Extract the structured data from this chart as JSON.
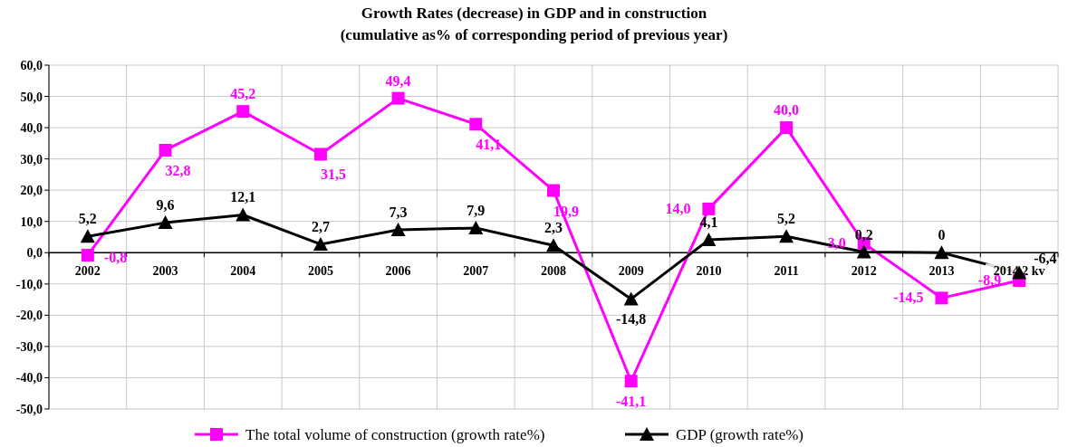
{
  "chart_data": {
    "type": "line",
    "title": "Growth Rates (decrease) in GDP and in construction\n(cumulative as% of corresponding period of previous year)",
    "categories": [
      "2002",
      "2003",
      "2004",
      "2005",
      "2006",
      "2007",
      "2008",
      "2009",
      "2010",
      "2011",
      "2012",
      "2013",
      "2014 2 kv"
    ],
    "series": [
      {
        "name": "The total volume of construction (growth rate%)",
        "color": "#ff00ff",
        "marker": "square",
        "values": [
          -0.8,
          32.8,
          45.2,
          31.5,
          49.4,
          41.1,
          19.9,
          -41.1,
          14.0,
          40.0,
          3.0,
          -14.5,
          -8.9
        ],
        "value_labels": [
          "-0,8",
          "32,8",
          "45,2",
          "31,5",
          "49,4",
          "41,1",
          "19,9",
          "-41,1",
          "14,0",
          "40,0",
          "3,0",
          "-14,5",
          "-8,9"
        ]
      },
      {
        "name": "GDP (growth rate%)",
        "color": "#000000",
        "marker": "triangle",
        "values": [
          5.2,
          9.6,
          12.1,
          2.7,
          7.3,
          7.9,
          2.3,
          -14.8,
          4.1,
          5.2,
          0.2,
          0,
          -6.4
        ],
        "value_labels": [
          "5,2",
          "9,6",
          "12,1",
          "2,7",
          "7,3",
          "7,9",
          "2,3",
          "-14,8",
          "4,1",
          "5,2",
          "0,2",
          "0",
          "-6,4"
        ]
      }
    ],
    "ylim": [
      -50,
      60
    ],
    "yticks": [
      {
        "value": -50,
        "label": "-50,0"
      },
      {
        "value": -40,
        "label": "-40,0"
      },
      {
        "value": -30,
        "label": "-30,0"
      },
      {
        "value": -20,
        "label": "-20,0"
      },
      {
        "value": -10,
        "label": "-10,0"
      },
      {
        "value": 0,
        "label": "0,0"
      },
      {
        "value": 10,
        "label": "10,0"
      },
      {
        "value": 20,
        "label": "20,0"
      },
      {
        "value": 30,
        "label": "30,0"
      },
      {
        "value": 40,
        "label": "40,0"
      },
      {
        "value": 50,
        "label": "50,0"
      },
      {
        "value": 60,
        "label": "60,0"
      }
    ],
    "grid": true,
    "legend": "bottom",
    "line_style": "solid"
  }
}
